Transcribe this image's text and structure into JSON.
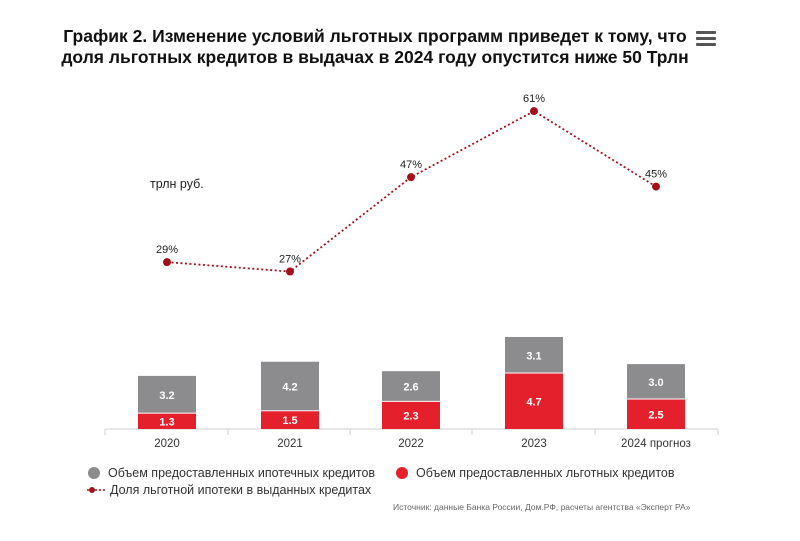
{
  "header": {
    "title": "График 2. Изменение условий льготных программ приведет к тому, что доля льготных кредитов в выдачах в 2024 году опустится ниже 50 Трлн",
    "menu_icon": "hamburger-menu-icon"
  },
  "colors": {
    "gray_bar": "#8c8c8f",
    "red_bar": "#e3202b",
    "line": "#a3101c",
    "axis": "#cfcfcf"
  },
  "chart_data": {
    "type": "bar",
    "ylabel": "трлн руб.",
    "categories": [
      "2020",
      "2021",
      "2022",
      "2023",
      "2024 прогноз"
    ],
    "series": [
      {
        "name": "Объем предоставленных льготных кредитов",
        "kind": "bar-stack-bottom",
        "color": "#e3202b",
        "values": [
          1.3,
          1.5,
          2.3,
          4.7,
          2.5
        ]
      },
      {
        "name": "Объем предоставленных ипотечных кредитов",
        "kind": "bar-stack-top",
        "color": "#8c8c8f",
        "values": [
          3.2,
          4.2,
          2.6,
          3.1,
          3.0
        ]
      },
      {
        "name": "Доля льготной ипотеки в выданных кредитах",
        "kind": "line",
        "color": "#a3101c",
        "values": [
          29,
          27,
          47,
          61,
          45
        ],
        "labels": [
          "29%",
          "27%",
          "47%",
          "61%",
          "45%"
        ]
      }
    ],
    "legend_position": "bottom"
  },
  "source": "Источник: данные Банка России, Дом.РФ, расчеты агентства «Эксперт РА»"
}
